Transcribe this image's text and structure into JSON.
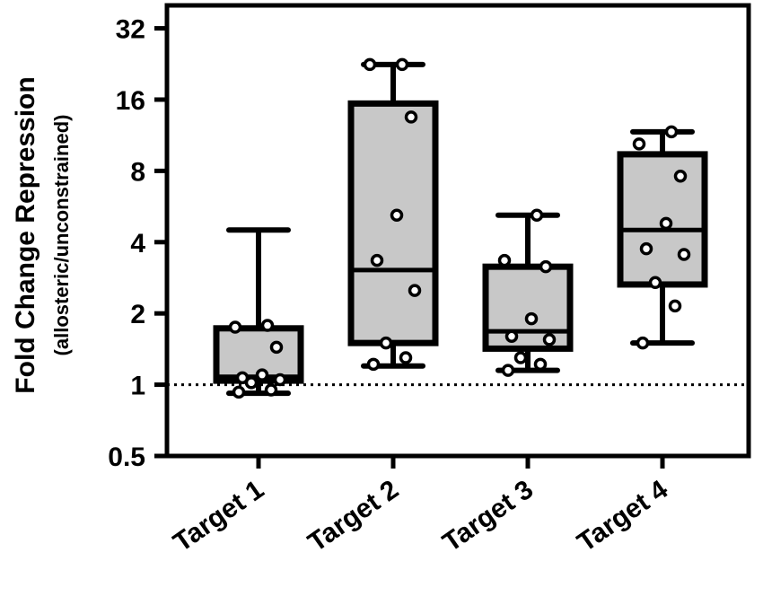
{
  "chart_data": {
    "type": "box",
    "y_scale": "log2",
    "ylim": [
      0.5,
      40
    ],
    "yticks": [
      0.5,
      1,
      2,
      4,
      8,
      16,
      32
    ],
    "ytick_labels": [
      "0.5",
      "1",
      "2",
      "4",
      "8",
      "16",
      "32"
    ],
    "ylabel": "Fold Change  Repression",
    "ylabel_sub": "(allosteric/unconstrained)",
    "reference_line": 1,
    "grid": false,
    "categories": [
      "Target 1",
      "Target 2",
      "Target 3",
      "Target 4"
    ],
    "boxes": [
      {
        "min": 0.92,
        "q1": 1.04,
        "median": 1.08,
        "q3": 1.73,
        "max": 4.5
      },
      {
        "min": 1.2,
        "q1": 1.5,
        "median": 3.05,
        "q3": 15.4,
        "max": 22.5
      },
      {
        "min": 1.15,
        "q1": 1.42,
        "median": 1.68,
        "q3": 3.15,
        "max": 5.2
      },
      {
        "min": 1.5,
        "q1": 2.65,
        "median": 4.5,
        "q3": 9.4,
        "max": 11.7
      }
    ],
    "points": [
      [
        0.93,
        0.95,
        1.02,
        1.05,
        1.07,
        1.1,
        1.44,
        1.75,
        1.78
      ],
      [
        1.22,
        1.3,
        1.5,
        2.5,
        3.35,
        5.2,
        13.5,
        22.5,
        22.5
      ],
      [
        1.15,
        1.22,
        1.3,
        1.55,
        1.6,
        1.9,
        3.15,
        3.35,
        5.2
      ],
      [
        1.5,
        2.15,
        2.7,
        3.55,
        3.75,
        4.8,
        7.6,
        10.4,
        11.7
      ]
    ],
    "colors": {
      "box_fill": "#c8c8c8",
      "stroke": "#000000",
      "point_fill": "#ffffff"
    }
  }
}
